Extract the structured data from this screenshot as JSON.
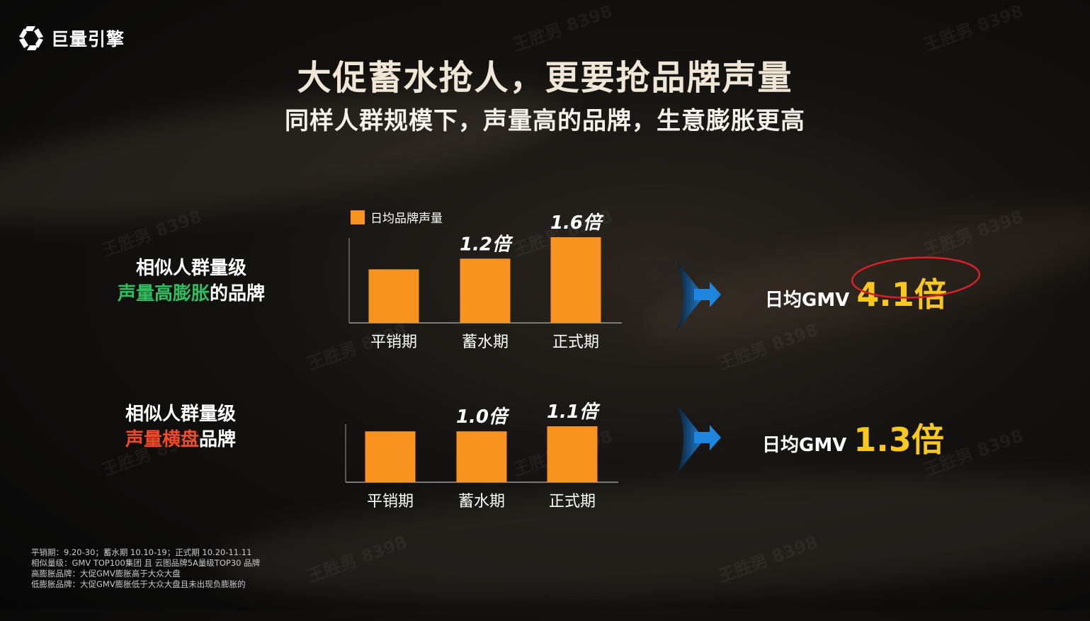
{
  "brand": {
    "name": "巨量引擎"
  },
  "title": "大促蓄水抢人，更要抢品牌声量",
  "subtitle": "同样人群规模下，声量高的品牌，生意膨胀更高",
  "legend_label": "日均品牌声量",
  "group1": {
    "line1": "相似人群量级",
    "highlight": "声量高膨胀",
    "rest": "的品牌",
    "gmv_label": "日均GMV",
    "gmv_value": "4.1倍"
  },
  "group2": {
    "line1": "相似人群量级",
    "highlight": "声量横盘",
    "rest": "品牌",
    "gmv_label": "日均GMV",
    "gmv_value": "1.3倍"
  },
  "chart_data": [
    {
      "type": "bar",
      "categories": [
        "平销期",
        "蓄水期",
        "正式期"
      ],
      "values": [
        1.0,
        1.2,
        1.6
      ],
      "data_labels": [
        "",
        "1.2倍",
        "1.6倍"
      ],
      "series": [
        {
          "name": "日均品牌声量",
          "values": [
            1.0,
            1.2,
            1.6
          ]
        }
      ],
      "ylim": [
        0,
        1.6
      ],
      "color": "#f7931e"
    },
    {
      "type": "bar",
      "categories": [
        "平销期",
        "蓄水期",
        "正式期"
      ],
      "values": [
        1.0,
        1.0,
        1.1
      ],
      "data_labels": [
        "",
        "1.0倍",
        "1.1倍"
      ],
      "ylim": [
        0,
        1.1
      ],
      "color": "#f7931e"
    }
  ],
  "footnotes": [
    "平销期：9.20-30；蓄水期 10.10-19；正式期 10.20-11.11",
    "相似量级：GMV TOP100集团 且 云图品牌5A量级TOP30 品牌",
    "高膨胀品牌：大促GMV膨胀高于大众大盘",
    "低膨胀品牌：大促GMV膨胀低于大众大盘且未出现负膨胀的"
  ],
  "watermark": "王胜男 8398",
  "colors": {
    "bar": "#f7931e",
    "gmv_value": "#f9c81e",
    "highlight_green": "#2fbf5f",
    "highlight_red": "#f04a2a",
    "arrow": "#1a7fd6"
  }
}
